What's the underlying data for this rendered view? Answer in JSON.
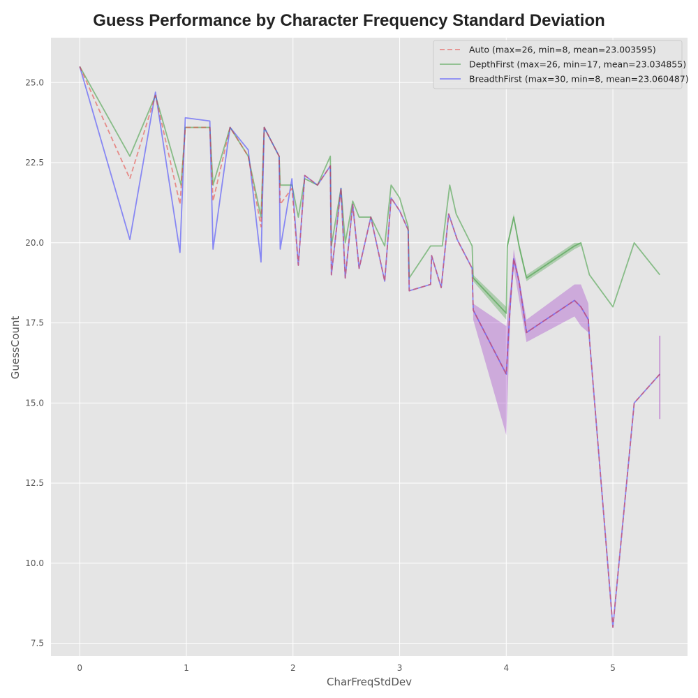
{
  "chart_data": {
    "type": "line",
    "title": "Guess Performance by Character Frequency Standard Deviation",
    "xlabel": "CharFreqStdDev",
    "ylabel": "GuessCount",
    "xlim": [
      -0.27,
      5.7
    ],
    "ylim": [
      7.1,
      26.4
    ],
    "xticks": [
      0,
      1,
      2,
      3,
      4,
      5
    ],
    "yticks": [
      7.5,
      10.0,
      12.5,
      15.0,
      17.5,
      20.0,
      22.5,
      25.0
    ],
    "xtick_labels": [
      "0",
      "1",
      "2",
      "3",
      "4",
      "5"
    ],
    "ytick_labels": [
      "7.5",
      "10.0",
      "12.5",
      "15.0",
      "17.5",
      "20.0",
      "22.5",
      "25.0"
    ],
    "grid": true,
    "legend_position": "top-right",
    "background": "#e5e5e5",
    "series": [
      {
        "name": "Auto (max=26, min=8, mean=23.003595)",
        "color": "#e8413c",
        "dash": true,
        "x": [
          0,
          0.47,
          0.71,
          0.94,
          0.99,
          1.22,
          1.25,
          1.41,
          1.58,
          1.7,
          1.73,
          1.87,
          1.88,
          1.99,
          2.05,
          2.11,
          2.23,
          2.35,
          2.36,
          2.45,
          2.49,
          2.56,
          2.62,
          2.73,
          2.86,
          2.92,
          3.0,
          3.08,
          3.09,
          3.29,
          3.3,
          3.39,
          3.46,
          3.54,
          3.68,
          3.69,
          4.0,
          4.04,
          4.07,
          4.12,
          4.19,
          4.64,
          4.7,
          4.77,
          4.78,
          5.0,
          5.2,
          5.44
        ],
        "y": [
          25.5,
          22.0,
          24.6,
          21.2,
          23.6,
          23.6,
          21.3,
          23.6,
          22.7,
          20.5,
          23.6,
          22.7,
          21.2,
          21.7,
          19.3,
          22.1,
          21.8,
          22.4,
          19.0,
          21.7,
          18.9,
          21.2,
          19.2,
          20.8,
          18.8,
          21.4,
          21.0,
          20.4,
          18.5,
          18.7,
          19.6,
          18.6,
          20.9,
          20.1,
          19.2,
          17.9,
          15.9,
          18.2,
          19.5,
          18.8,
          17.2,
          18.2,
          18.0,
          17.6,
          17.0,
          8.0,
          15.0,
          15.9
        ]
      },
      {
        "name": "DepthFirst (max=26, min=17, mean=23.034855)",
        "color": "#3a9a3a",
        "dash": false,
        "x": [
          0,
          0.47,
          0.71,
          0.95,
          0.99,
          1.22,
          1.25,
          1.41,
          1.58,
          1.7,
          1.73,
          1.87,
          1.88,
          1.99,
          2.05,
          2.11,
          2.23,
          2.35,
          2.36,
          2.45,
          2.49,
          2.56,
          2.62,
          2.73,
          2.86,
          2.92,
          3.0,
          3.08,
          3.09,
          3.29,
          3.31,
          3.4,
          3.47,
          3.53,
          3.68,
          3.69,
          4.0,
          4.01,
          4.07,
          4.12,
          4.19,
          4.64,
          4.7,
          4.78,
          5.0,
          5.2,
          5.44
        ],
        "y": [
          25.5,
          22.7,
          24.6,
          21.8,
          23.6,
          23.6,
          21.8,
          23.6,
          22.7,
          20.8,
          23.6,
          22.7,
          21.8,
          21.8,
          20.8,
          22.0,
          21.8,
          22.7,
          19.9,
          21.7,
          20.0,
          21.3,
          20.8,
          20.8,
          19.9,
          21.8,
          21.4,
          20.5,
          18.9,
          19.9,
          19.9,
          19.9,
          21.8,
          20.9,
          19.9,
          18.9,
          17.8,
          19.9,
          20.8,
          19.9,
          18.9,
          19.9,
          20.0,
          19.0,
          18.0,
          20.0,
          19.0
        ]
      },
      {
        "name": "BreadthFirst (max=30, min=8, mean=23.060487)",
        "color": "#3b3bff",
        "dash": false,
        "x": [
          0,
          0.47,
          0.71,
          0.94,
          0.99,
          1.22,
          1.25,
          1.41,
          1.58,
          1.7,
          1.73,
          1.87,
          1.88,
          1.99,
          2.05,
          2.11,
          2.23,
          2.35,
          2.36,
          2.45,
          2.49,
          2.56,
          2.62,
          2.73,
          2.86,
          2.92,
          3.0,
          3.08,
          3.09,
          3.29,
          3.3,
          3.39,
          3.46,
          3.54,
          3.68,
          3.69,
          4.0,
          4.04,
          4.07,
          4.12,
          4.19,
          4.64,
          4.7,
          4.77,
          4.78,
          5.0,
          5.2,
          5.44
        ],
        "y": [
          25.5,
          20.1,
          24.7,
          19.7,
          23.9,
          23.8,
          19.8,
          23.6,
          22.9,
          19.4,
          23.6,
          22.7,
          19.8,
          22.0,
          19.3,
          22.1,
          21.8,
          22.4,
          19.0,
          21.7,
          18.9,
          21.2,
          19.2,
          20.8,
          18.8,
          21.4,
          21.0,
          20.4,
          18.5,
          18.7,
          19.6,
          18.6,
          20.9,
          20.1,
          19.2,
          17.9,
          15.9,
          18.2,
          19.5,
          18.8,
          17.2,
          18.2,
          18.0,
          17.6,
          17.0,
          8.0,
          15.0,
          15.9
        ]
      }
    ],
    "confidence_bands": [
      {
        "color": "#9b30c8",
        "x": [
          3.69,
          4.0,
          4.04,
          4.07,
          4.19,
          4.64,
          4.7,
          4.77,
          4.78
        ],
        "upper": [
          18.1,
          17.4,
          18.6,
          19.8,
          17.6,
          18.7,
          18.7,
          18.1,
          17.3
        ],
        "lower": [
          17.6,
          14.0,
          17.9,
          19.2,
          16.9,
          17.7,
          17.4,
          17.2,
          16.9
        ]
      },
      {
        "color": "#3a9a3a",
        "x": [
          3.69,
          4.0,
          4.01,
          4.07,
          4.12,
          4.19,
          4.64,
          4.7
        ],
        "upper": [
          19.0,
          18.0,
          20.0,
          20.9,
          20.0,
          19.0,
          20.0,
          20.0
        ],
        "lower": [
          18.8,
          17.6,
          19.8,
          20.7,
          19.8,
          18.8,
          19.8,
          19.9
        ]
      }
    ],
    "error_bar": {
      "color": "#b463c8",
      "x": 5.44,
      "low": 14.5,
      "high": 17.1
    }
  }
}
